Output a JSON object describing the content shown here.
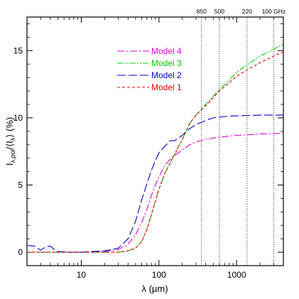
{
  "chart_data": {
    "type": "line",
    "xlabel": "λ  (μm)",
    "ylabel_main": "I",
    "ylabel_sub1": "λ,pol",
    "ylabel_mid": "/⟨I",
    "ylabel_sub2": "λ",
    "ylabel_end": "⟩  (%)",
    "x_scale": "log",
    "xlim": [
      2,
      4000
    ],
    "ylim": [
      -1,
      17.5
    ],
    "x_ticks": [
      {
        "value": 10,
        "label": "10"
      },
      {
        "value": 100,
        "label": "100"
      },
      {
        "value": 1000,
        "label": "1000"
      }
    ],
    "y_ticks": [
      {
        "value": 0,
        "label": "0"
      },
      {
        "value": 5,
        "label": "5"
      },
      {
        "value": 10,
        "label": "10"
      },
      {
        "value": 15,
        "label": "15"
      }
    ],
    "vlines": [
      {
        "x": 353,
        "label": "850"
      },
      {
        "x": 600,
        "label": "500"
      },
      {
        "x": 1363,
        "label": "220"
      },
      {
        "x": 3000,
        "label": "100 GHz"
      }
    ],
    "legend_position": "upper-left",
    "series": [
      {
        "name": "Model 4",
        "color": "#e000e0",
        "dash": "10,3,2,3",
        "points": [
          [
            2,
            0
          ],
          [
            5,
            0
          ],
          [
            10,
            0
          ],
          [
            20,
            0.05
          ],
          [
            30,
            0.2
          ],
          [
            40,
            0.6
          ],
          [
            50,
            1.3
          ],
          [
            60,
            2.2
          ],
          [
            70,
            3.2
          ],
          [
            80,
            4.2
          ],
          [
            90,
            5.0
          ],
          [
            100,
            5.6
          ],
          [
            120,
            6.5
          ],
          [
            150,
            7.1
          ],
          [
            200,
            7.6
          ],
          [
            250,
            8.0
          ],
          [
            300,
            8.2
          ],
          [
            400,
            8.4
          ],
          [
            500,
            8.5
          ],
          [
            700,
            8.6
          ],
          [
            1000,
            8.7
          ],
          [
            1500,
            8.75
          ],
          [
            2000,
            8.8
          ],
          [
            4000,
            8.85
          ]
        ]
      },
      {
        "name": "Model 3",
        "color": "#00cc00",
        "dash": "8,2,2,2,2,2",
        "points": [
          [
            2,
            0
          ],
          [
            10,
            0
          ],
          [
            30,
            0
          ],
          [
            40,
            0.1
          ],
          [
            50,
            0.3
          ],
          [
            60,
            0.8
          ],
          [
            70,
            1.7
          ],
          [
            80,
            2.8
          ],
          [
            90,
            3.8
          ],
          [
            100,
            4.7
          ],
          [
            120,
            5.9
          ],
          [
            150,
            7.0
          ],
          [
            200,
            8.4
          ],
          [
            250,
            9.6
          ],
          [
            300,
            10.2
          ],
          [
            350,
            10.6
          ],
          [
            400,
            11.0
          ],
          [
            500,
            11.6
          ],
          [
            600,
            12.1
          ],
          [
            800,
            12.8
          ],
          [
            1000,
            13.4
          ],
          [
            1500,
            14.1
          ],
          [
            2000,
            14.6
          ],
          [
            3000,
            15.1
          ],
          [
            4000,
            15.5
          ]
        ]
      },
      {
        "name": "Model 2",
        "color": "#0000cc",
        "dash": "12,4",
        "points": [
          [
            2,
            0.5
          ],
          [
            2.5,
            0.45
          ],
          [
            3,
            0.15
          ],
          [
            3.5,
            0.4
          ],
          [
            4,
            0.45
          ],
          [
            4.5,
            0.2
          ],
          [
            5,
            0.05
          ],
          [
            7,
            0
          ],
          [
            10,
            0
          ],
          [
            20,
            0.1
          ],
          [
            30,
            0.3
          ],
          [
            40,
            1.0
          ],
          [
            50,
            2.3
          ],
          [
            60,
            3.9
          ],
          [
            70,
            5.1
          ],
          [
            80,
            6.1
          ],
          [
            90,
            6.8
          ],
          [
            100,
            7.4
          ],
          [
            120,
            7.9
          ],
          [
            140,
            8.3
          ],
          [
            160,
            8.3
          ],
          [
            200,
            8.7
          ],
          [
            250,
            9.2
          ],
          [
            300,
            9.5
          ],
          [
            400,
            9.8
          ],
          [
            500,
            10.0
          ],
          [
            700,
            10.1
          ],
          [
            1000,
            10.15
          ],
          [
            2000,
            10.2
          ],
          [
            4000,
            10.2
          ]
        ]
      },
      {
        "name": "Model 1",
        "color": "#ee0000",
        "dash": "4,3",
        "points": [
          [
            2,
            0
          ],
          [
            10,
            0
          ],
          [
            30,
            0
          ],
          [
            40,
            0.1
          ],
          [
            50,
            0.3
          ],
          [
            60,
            0.8
          ],
          [
            70,
            1.7
          ],
          [
            80,
            2.8
          ],
          [
            90,
            3.8
          ],
          [
            100,
            4.7
          ],
          [
            120,
            5.9
          ],
          [
            150,
            7.0
          ],
          [
            200,
            8.4
          ],
          [
            250,
            9.6
          ],
          [
            300,
            10.2
          ],
          [
            350,
            10.6
          ],
          [
            400,
            10.9
          ],
          [
            500,
            11.5
          ],
          [
            600,
            12.0
          ],
          [
            800,
            12.6
          ],
          [
            1000,
            13.1
          ],
          [
            1500,
            13.7
          ],
          [
            2000,
            14.1
          ],
          [
            3000,
            14.6
          ],
          [
            4000,
            14.9
          ]
        ]
      }
    ]
  }
}
